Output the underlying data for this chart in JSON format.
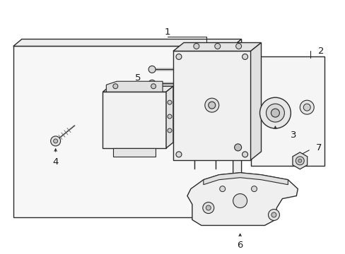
{
  "background_color": "#ffffff",
  "line_color": "#2a2a2a",
  "label_color": "#1a1a1a",
  "figsize": [
    4.89,
    3.6
  ],
  "dpi": 100,
  "label_fontsize": 9.5
}
